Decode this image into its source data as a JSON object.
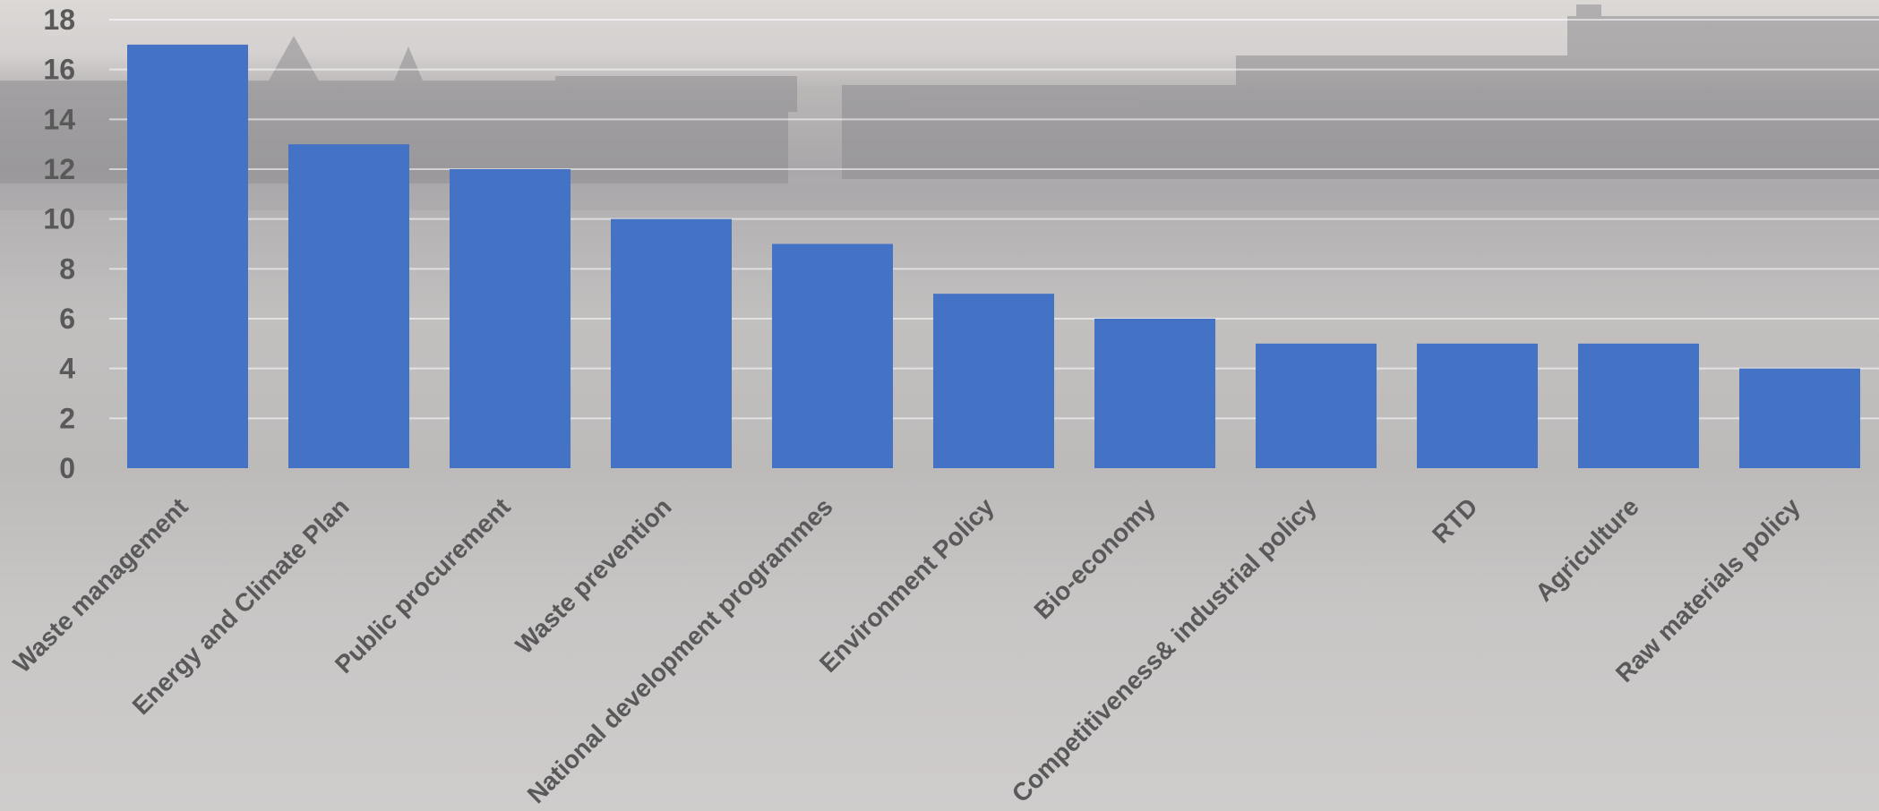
{
  "chart_data": {
    "type": "bar",
    "title": "",
    "xlabel": "",
    "ylabel": "",
    "categories": [
      "Waste management",
      "Energy and Climate Plan",
      "Public procurement",
      "Waste prevention",
      "National development programmes",
      "Environment Policy",
      "Bio-economy",
      "Competitiveness& industrial policy",
      "RTD",
      "Agriculture",
      "Raw materials policy"
    ],
    "values": [
      17,
      13,
      12,
      10,
      9,
      7,
      6,
      5,
      5,
      5,
      4
    ],
    "ylim": [
      0,
      18
    ],
    "yticks": [
      0,
      2,
      4,
      6,
      8,
      10,
      12,
      14,
      16,
      18
    ],
    "grid": true,
    "bar_color": "#4472C4",
    "legend": "none"
  }
}
